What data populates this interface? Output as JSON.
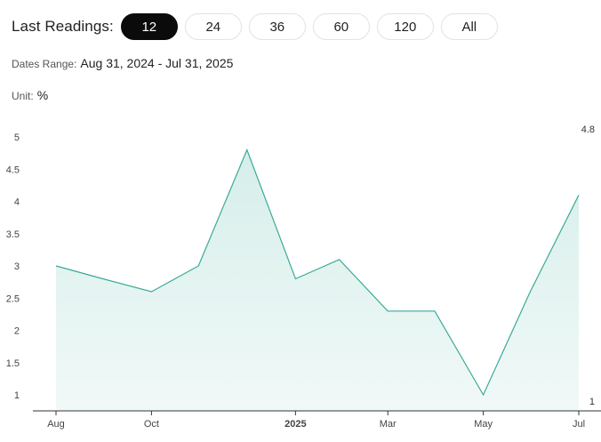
{
  "toolbar": {
    "label": "Last Readings:",
    "ranges": [
      "12",
      "24",
      "36",
      "60",
      "120",
      "All"
    ],
    "active_range": "12"
  },
  "dates_range": {
    "label": "Dates Range:",
    "value": "Aug 31, 2024 - Jul 31, 2025"
  },
  "unit": {
    "label": "Unit:",
    "value": "%"
  },
  "colors": {
    "line": "#3aa99a",
    "fill": "#d6eeea",
    "axis": "#333333",
    "active": "#0b0b0b"
  },
  "chart_data": {
    "type": "area",
    "x": [
      "2024-08-31",
      "2024-09-30",
      "2024-10-31",
      "2024-11-30",
      "2024-12-31",
      "2025-01-31",
      "2025-02-28",
      "2025-03-31",
      "2025-04-30",
      "2025-05-31",
      "2025-06-30",
      "2025-07-31"
    ],
    "values": [
      3.0,
      2.8,
      2.6,
      3.0,
      4.8,
      2.8,
      3.1,
      2.3,
      2.3,
      1.0,
      2.6,
      4.1
    ],
    "y_ticks": [
      "1",
      "1.5",
      "2",
      "2.5",
      "3",
      "3.5",
      "4",
      "4.5",
      "5"
    ],
    "ylim": [
      1,
      5
    ],
    "x_ticks": [
      {
        "label": "Aug",
        "date": "2024-08-31",
        "bold": false
      },
      {
        "label": "Oct",
        "date": "2024-10-31",
        "bold": false
      },
      {
        "label": "2025",
        "date": "2025-01-31",
        "bold": true
      },
      {
        "label": "Mar",
        "date": "2025-03-31",
        "bold": false
      },
      {
        "label": "May",
        "date": "2025-05-31",
        "bold": false
      },
      {
        "label": "Jul",
        "date": "2025-07-31",
        "bold": false
      }
    ],
    "max_label": "4.8",
    "min_label": "1",
    "grid": false,
    "legend": "none",
    "title": "",
    "xlabel": "",
    "ylabel": ""
  }
}
